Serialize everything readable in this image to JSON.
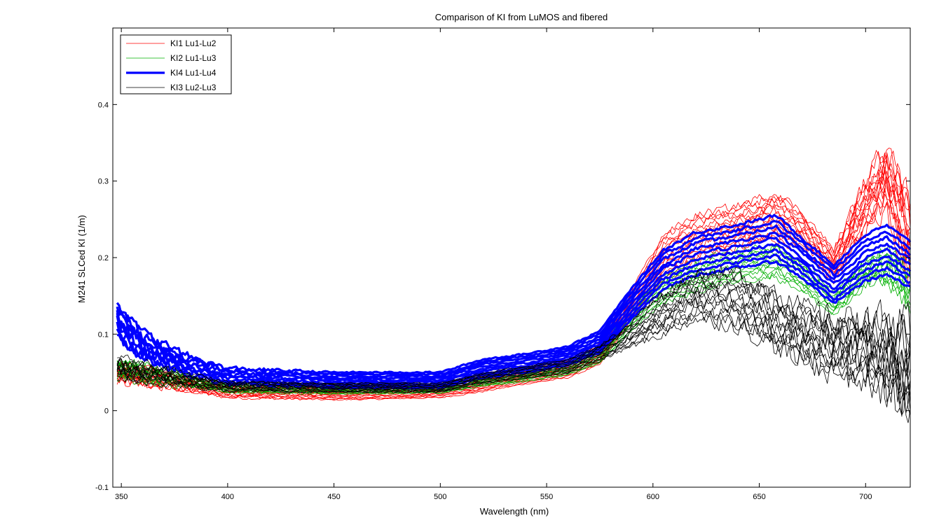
{
  "chart_data": {
    "type": "line",
    "title": "Comparison of KI from LuMOS and fibered",
    "xlabel": "Wavelength (nm)",
    "ylabel": "M241 SLCed KI (1/m)",
    "xlim": [
      346,
      721
    ],
    "ylim": [
      -0.1,
      0.5
    ],
    "xticks": [
      350,
      400,
      450,
      500,
      550,
      600,
      650,
      700
    ],
    "yticks": [
      -0.1,
      0,
      0.1,
      0.2,
      0.3,
      0.4
    ],
    "ytick_labels": [
      "-0.1",
      "0",
      "0.1",
      "0.2",
      "0.3",
      "0.4"
    ],
    "legend_position": "top-left",
    "series": [
      {
        "name": "KI1 Lu1-Lu2",
        "color": "#ff0000",
        "line_width": "thin",
        "curves": 16,
        "x": [
          348,
          360,
          380,
          400,
          450,
          500,
          520,
          540,
          560,
          575,
          590,
          605,
          620,
          640,
          658,
          670,
          685,
          700,
          710,
          721
        ],
        "y": [
          0.05,
          0.045,
          0.035,
          0.025,
          0.022,
          0.025,
          0.035,
          0.045,
          0.055,
          0.075,
          0.14,
          0.2,
          0.225,
          0.24,
          0.255,
          0.235,
          0.19,
          0.27,
          0.305,
          0.22
        ],
        "spread": [
          0.01,
          0.01,
          0.008,
          0.008,
          0.008,
          0.008,
          0.01,
          0.01,
          0.012,
          0.015,
          0.02,
          0.03,
          0.03,
          0.028,
          0.03,
          0.025,
          0.02,
          0.03,
          0.04,
          0.05
        ],
        "noise": [
          0.008,
          0.007,
          0.004,
          0.002,
          0.001,
          0.001,
          0.001,
          0.001,
          0.001,
          0.001,
          0.002,
          0.004,
          0.005,
          0.005,
          0.006,
          0.005,
          0.005,
          0.012,
          0.018,
          0.022
        ]
      },
      {
        "name": "KI2 Lu1-Lu3",
        "color": "#00b000",
        "line_width": "thin",
        "curves": 12,
        "x": [
          348,
          360,
          380,
          400,
          450,
          500,
          520,
          540,
          560,
          575,
          590,
          605,
          620,
          640,
          658,
          670,
          685,
          700,
          710,
          721
        ],
        "y": [
          0.055,
          0.05,
          0.04,
          0.03,
          0.027,
          0.028,
          0.038,
          0.045,
          0.055,
          0.072,
          0.12,
          0.16,
          0.175,
          0.19,
          0.195,
          0.175,
          0.14,
          0.18,
          0.19,
          0.16
        ],
        "spread": [
          0.01,
          0.01,
          0.008,
          0.006,
          0.005,
          0.005,
          0.006,
          0.007,
          0.008,
          0.01,
          0.015,
          0.018,
          0.02,
          0.02,
          0.02,
          0.018,
          0.015,
          0.018,
          0.02,
          0.025
        ],
        "noise": [
          0.008,
          0.007,
          0.004,
          0.002,
          0.001,
          0.001,
          0.001,
          0.001,
          0.001,
          0.001,
          0.002,
          0.003,
          0.004,
          0.004,
          0.005,
          0.004,
          0.004,
          0.007,
          0.009,
          0.012
        ]
      },
      {
        "name": "KI4 Lu1-Lu4",
        "color": "#0000ff",
        "line_width": "thick",
        "curves": 9,
        "x": [
          348,
          350,
          360,
          380,
          400,
          450,
          500,
          520,
          540,
          560,
          575,
          590,
          605,
          620,
          640,
          658,
          670,
          685,
          700,
          710,
          721
        ],
        "y": [
          0.12,
          0.11,
          0.085,
          0.06,
          0.045,
          0.04,
          0.04,
          0.055,
          0.062,
          0.072,
          0.09,
          0.14,
          0.185,
          0.205,
          0.215,
          0.225,
          0.2,
          0.165,
          0.2,
          0.21,
          0.19
        ],
        "spread": [
          0.02,
          0.02,
          0.015,
          0.012,
          0.01,
          0.01,
          0.01,
          0.012,
          0.012,
          0.012,
          0.014,
          0.02,
          0.025,
          0.028,
          0.028,
          0.03,
          0.026,
          0.025,
          0.03,
          0.032,
          0.03
        ],
        "noise": [
          0.012,
          0.01,
          0.008,
          0.005,
          0.003,
          0.001,
          0.001,
          0.001,
          0.001,
          0.001,
          0.001,
          0.001,
          0.002,
          0.002,
          0.002,
          0.002,
          0.002,
          0.002,
          0.002,
          0.002,
          0.002
        ]
      },
      {
        "name": "KI3 Lu2-Lu3",
        "color": "#000000",
        "line_width": "thin",
        "curves": 14,
        "x": [
          348,
          360,
          380,
          400,
          450,
          500,
          520,
          540,
          560,
          575,
          590,
          600,
          620,
          640,
          650,
          670,
          685,
          700,
          710,
          721
        ],
        "y": [
          0.055,
          0.05,
          0.04,
          0.032,
          0.03,
          0.03,
          0.042,
          0.05,
          0.058,
          0.075,
          0.1,
          0.12,
          0.15,
          0.145,
          0.13,
          0.1,
          0.085,
          0.08,
          0.07,
          0.05
        ],
        "spread": [
          0.01,
          0.01,
          0.008,
          0.006,
          0.006,
          0.006,
          0.007,
          0.008,
          0.009,
          0.01,
          0.015,
          0.025,
          0.03,
          0.035,
          0.035,
          0.035,
          0.035,
          0.04,
          0.045,
          0.05
        ],
        "noise": [
          0.008,
          0.007,
          0.004,
          0.002,
          0.001,
          0.001,
          0.001,
          0.001,
          0.001,
          0.002,
          0.004,
          0.006,
          0.008,
          0.01,
          0.012,
          0.014,
          0.016,
          0.02,
          0.025,
          0.035
        ]
      }
    ]
  }
}
